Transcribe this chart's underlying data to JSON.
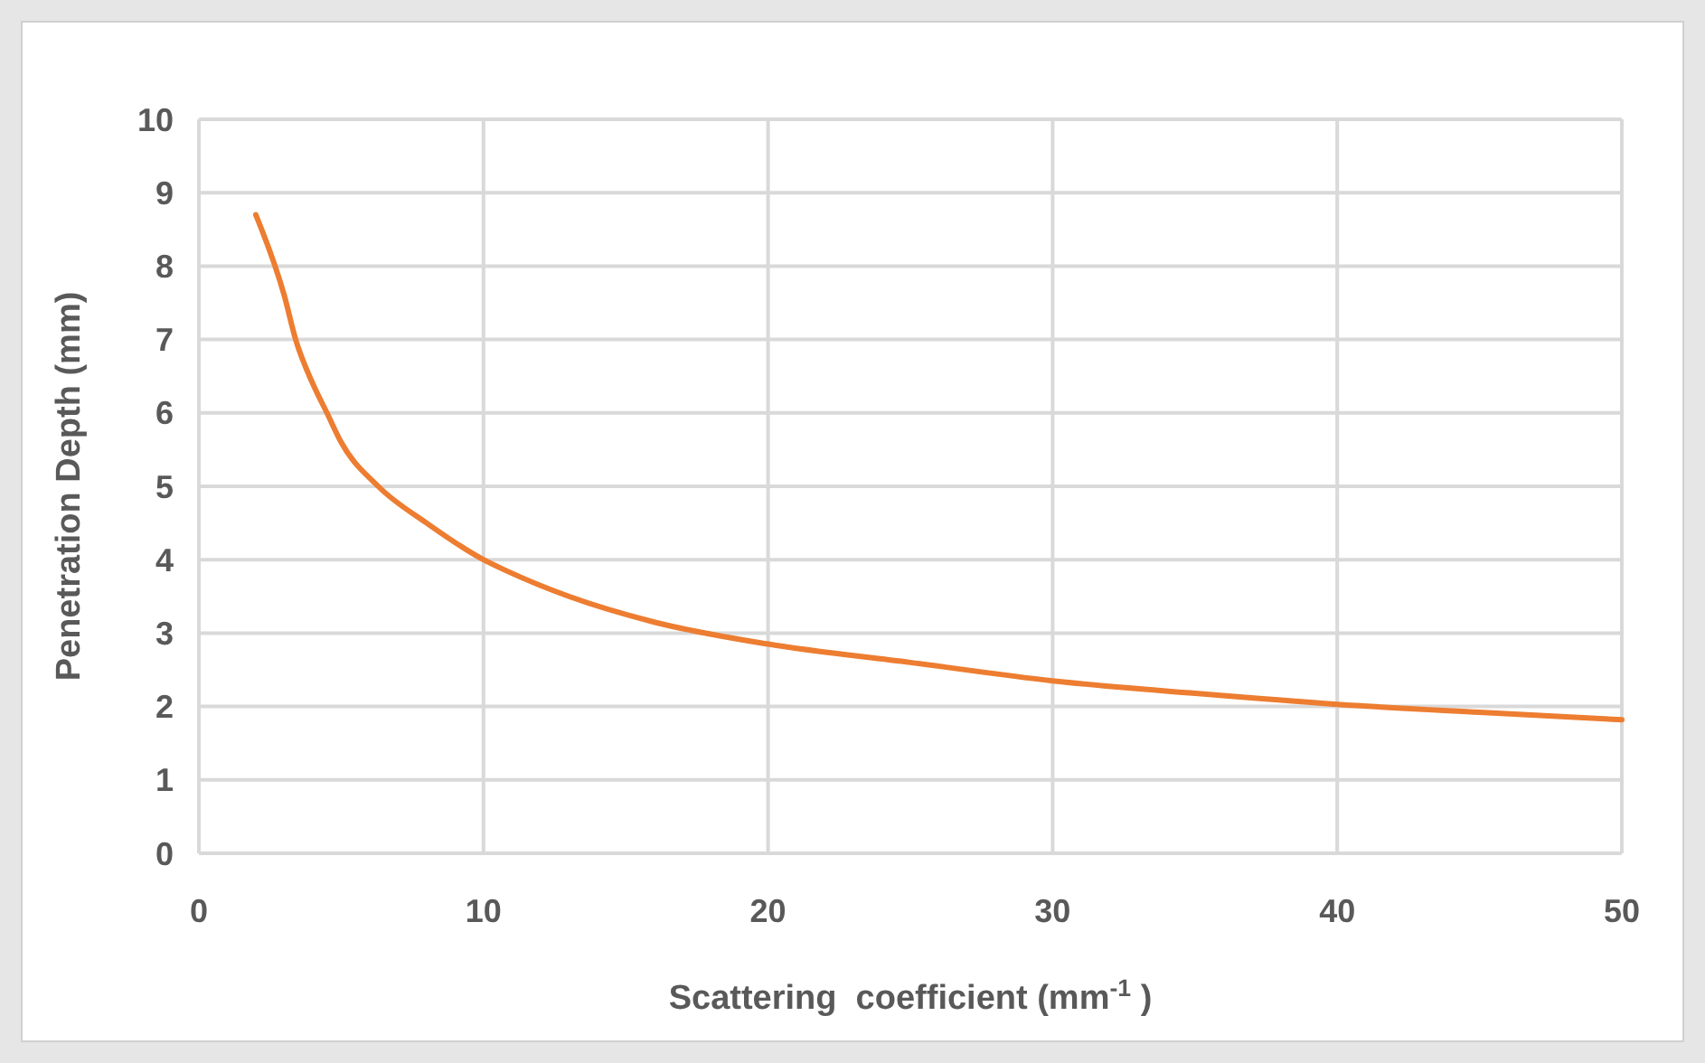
{
  "chart_data": {
    "type": "line",
    "xlabel": "Scattering  coefficient (mm$^{-1}$ )",
    "ylabel": "Penetration Depth (mm)",
    "x": [
      2,
      3,
      3.4,
      4,
      4.5,
      5,
      6.3,
      8,
      10,
      10.8,
      13,
      16,
      20,
      25,
      30,
      35,
      40,
      45,
      50
    ],
    "series": [
      {
        "color": "#ed7d31",
        "values": [
          8.7,
          7.6,
          7.0,
          6.4,
          6.0,
          5.6,
          5.0,
          4.5,
          4.0,
          3.85,
          3.5,
          3.15,
          2.85,
          2.6,
          2.35,
          2.18,
          2.03,
          1.92,
          1.82
        ]
      }
    ],
    "xlim": [
      0,
      50
    ],
    "xticks": [
      0,
      10,
      20,
      30,
      40,
      50
    ],
    "ylim": [
      0,
      10
    ],
    "yticks": [
      0,
      1,
      2,
      3,
      4,
      5,
      6,
      7,
      8,
      9,
      10
    ],
    "grid": true,
    "marker": "none",
    "line_style": "solid"
  }
}
